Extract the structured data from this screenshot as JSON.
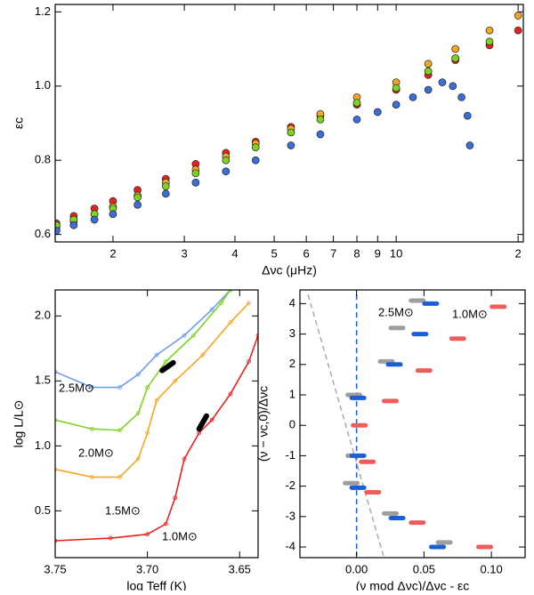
{
  "chart_data": [
    {
      "type": "scatter",
      "xscale": "log",
      "xlabel": "Δνc (μHz)",
      "ylabel": "εc",
      "xlim": [
        1.44,
        20.6
      ],
      "ylim": [
        0.58,
        1.22
      ],
      "xticks": [
        2,
        3,
        4,
        5,
        6,
        7,
        8,
        9,
        10,
        {
          "value": 20,
          "label": "2"
        }
      ],
      "yticks": [
        0.6,
        0.8,
        {
          "value": 1.0,
          "label": "1.0"
        },
        1.2
      ],
      "series": [
        {
          "color": "#e8221c",
          "x": [
            1.45,
            1.6,
            1.8,
            2.0,
            2.3,
            2.7,
            3.2,
            3.8,
            4.5,
            5.5,
            6.5,
            8,
            10,
            12,
            14,
            17,
            20
          ],
          "values": [
            0.63,
            0.65,
            0.67,
            0.69,
            0.72,
            0.75,
            0.79,
            0.82,
            0.85,
            0.89,
            0.92,
            0.95,
            0.99,
            1.03,
            1.07,
            1.11,
            1.15
          ]
        },
        {
          "color": "#f5a623",
          "x": [
            1.45,
            1.6,
            1.8,
            2.0,
            2.3,
            2.7,
            3.2,
            3.8,
            4.5,
            5.5,
            6.5,
            8,
            10,
            12,
            14,
            17,
            20
          ],
          "values": [
            0.62,
            0.635,
            0.655,
            0.675,
            0.705,
            0.74,
            0.775,
            0.81,
            0.845,
            0.885,
            0.925,
            0.97,
            1.01,
            1.06,
            1.1,
            1.15,
            1.19
          ]
        },
        {
          "color": "#7ed321",
          "x": [
            1.45,
            1.6,
            1.8,
            2.0,
            2.3,
            2.7,
            3.2,
            3.8,
            4.5,
            5.5,
            6.5,
            8,
            10,
            12,
            14,
            17
          ],
          "values": [
            0.625,
            0.64,
            0.655,
            0.67,
            0.7,
            0.73,
            0.765,
            0.8,
            0.835,
            0.875,
            0.91,
            0.955,
            0.995,
            1.04,
            1.075,
            1.12
          ]
        },
        {
          "color": "#3b6fd8",
          "x": [
            1.45,
            1.6,
            1.8,
            2.0,
            2.3,
            2.7,
            3.2,
            3.8,
            4.5,
            5.5,
            6.5,
            8,
            9,
            10,
            11,
            12,
            13,
            13.8,
            14.5,
            15,
            15.2
          ],
          "values": [
            0.61,
            0.625,
            0.64,
            0.655,
            0.68,
            0.71,
            0.74,
            0.77,
            0.8,
            0.84,
            0.87,
            0.91,
            0.93,
            0.95,
            0.97,
            0.99,
            1.01,
            1.0,
            0.97,
            0.92,
            0.84
          ]
        }
      ]
    },
    {
      "type": "line",
      "xlabel": "log Teff (K)",
      "ylabel": "log L/L⊙",
      "xlim": [
        3.75,
        3.64
      ],
      "ylim": [
        0.14,
        2.2
      ],
      "xticks": [
        3.75,
        {
          "value": 3.7,
          "label": "3.70"
        },
        3.65
      ],
      "yticks": [
        0.5,
        {
          "value": 1.0,
          "label": "1.0"
        },
        1.5,
        {
          "value": 2.0,
          "label": "2.0"
        }
      ],
      "annotations": [
        "2.5M⊙",
        "2.0M⊙",
        "1.5M⊙",
        "1.0M⊙"
      ],
      "series": [
        {
          "color": "#6f9bf0",
          "x": [
            3.75,
            3.73,
            3.715,
            3.705,
            3.695,
            3.68,
            3.665,
            3.655
          ],
          "values": [
            1.57,
            1.45,
            1.45,
            1.55,
            1.7,
            1.85,
            2.05,
            2.2
          ]
        },
        {
          "color": "#7ed321",
          "x": [
            3.75,
            3.73,
            3.715,
            3.705,
            3.7,
            3.69,
            3.675,
            3.66,
            3.655
          ],
          "values": [
            1.2,
            1.13,
            1.12,
            1.25,
            1.45,
            1.65,
            1.85,
            2.1,
            2.2
          ]
        },
        {
          "color": "#f5a623",
          "x": [
            3.75,
            3.73,
            3.715,
            3.705,
            3.7,
            3.695,
            3.685,
            3.67,
            3.655,
            3.645
          ],
          "values": [
            0.82,
            0.76,
            0.76,
            0.9,
            1.1,
            1.35,
            1.5,
            1.7,
            1.95,
            2.1
          ]
        },
        {
          "color": "#e8221c",
          "x": [
            3.75,
            3.72,
            3.7,
            3.69,
            3.685,
            3.68,
            3.672,
            3.665,
            3.655,
            3.645,
            3.64
          ],
          "values": [
            0.27,
            0.29,
            0.32,
            0.4,
            0.6,
            0.9,
            1.1,
            1.2,
            1.4,
            1.65,
            1.85
          ]
        },
        {
          "color": "#000000",
          "x": [
            3.692,
            3.686
          ],
          "values": [
            1.58,
            1.64
          ]
        },
        {
          "color": "#000000",
          "x": [
            3.672,
            3.668
          ],
          "values": [
            1.13,
            1.23
          ]
        }
      ]
    },
    {
      "type": "scatter",
      "marker": "dash",
      "xlabel": "(ν mod Δνc)/Δνc - εc",
      "ylabel": "(ν − νc,0)/Δνc",
      "xlim": [
        -0.042,
        0.125
      ],
      "ylim": [
        -4.35,
        4.45
      ],
      "xticks": [
        {
          "value": 0,
          "label": "0.00"
        },
        0.05,
        {
          "value": 0.1,
          "label": "0.10"
        }
      ],
      "yticks": [
        -4,
        -3,
        -2,
        -1,
        0,
        1,
        2,
        3,
        4
      ],
      "annotations": [
        "2.5M⊙",
        "1.0M⊙"
      ],
      "lines": [
        {
          "color": "#aaaaaa",
          "x": [
            -0.036,
            0.02
          ],
          "values": [
            4.3,
            -4.3
          ]
        },
        {
          "color": "#1a5fd6",
          "x": [
            0,
            0
          ],
          "values": [
            4.3,
            -4.3
          ]
        }
      ],
      "series": [
        {
          "color": "#9e9e9e",
          "x": [
            0.045,
            0.03,
            0.022,
            -0.002,
            -0.002,
            -0.004,
            0.025,
            0.065
          ],
          "values": [
            4.1,
            3.2,
            2.1,
            1.0,
            -1.0,
            -1.9,
            -2.9,
            -3.85
          ]
        },
        {
          "color": "#1a5fd6",
          "x": [
            0.055,
            0.047,
            0.028,
            0.001,
            0.001,
            0.001,
            0.03,
            0.06
          ],
          "values": [
            4.0,
            3.0,
            2.0,
            0.9,
            -1.0,
            -2.05,
            -3.05,
            -4.0
          ]
        },
        {
          "color": "#f25b5b",
          "x": [
            0.105,
            0.075,
            0.05,
            0.025,
            0.002,
            0.008,
            0.012,
            0.045,
            0.095
          ],
          "values": [
            3.9,
            2.85,
            1.8,
            0.8,
            0.0,
            -1.2,
            -2.2,
            -3.2,
            -4.0
          ]
        }
      ]
    }
  ]
}
